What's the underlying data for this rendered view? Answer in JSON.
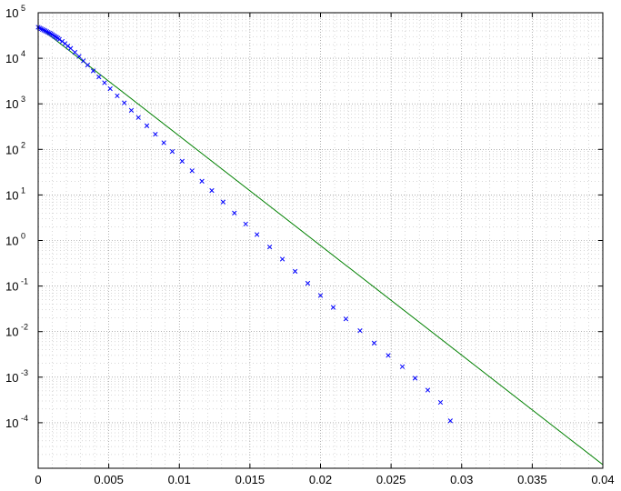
{
  "chart_data": {
    "type": "line",
    "title": "",
    "xlabel": "",
    "ylabel": "",
    "xlim": [
      0,
      0.04
    ],
    "ylim": [
      1e-05,
      100000
    ],
    "yscale": "log",
    "grid": "on (major solid, minor dotted)",
    "legend": "none",
    "x_ticks": [
      "0",
      "0.005",
      "0.01",
      "0.015",
      "0.02",
      "0.025",
      "0.03",
      "0.035",
      "0.04"
    ],
    "y_ticks": [
      {
        "base": "10",
        "exp": "-4"
      },
      {
        "base": "10",
        "exp": "-3"
      },
      {
        "base": "10",
        "exp": "-2"
      },
      {
        "base": "10",
        "exp": "-1"
      },
      {
        "base": "10",
        "exp": "0"
      },
      {
        "base": "10",
        "exp": "1"
      },
      {
        "base": "10",
        "exp": "2"
      },
      {
        "base": "10",
        "exp": "3"
      },
      {
        "base": "10",
        "exp": "4"
      },
      {
        "base": "10",
        "exp": "5"
      }
    ],
    "series": [
      {
        "style": "line",
        "color": "#008000",
        "x": [
          0,
          0.04
        ],
        "y": [
          50000,
          1.2e-05
        ]
      },
      {
        "style": "x-markers",
        "color": "#0000ff",
        "x": [
          0,
          0.0001,
          0.0002,
          0.0003,
          0.0004,
          0.0005,
          0.0006,
          0.0007,
          0.0008,
          0.0009,
          0.001,
          0.0011,
          0.0012,
          0.0013,
          0.0014,
          0.0015,
          0.0017,
          0.0019,
          0.0021,
          0.0023,
          0.0026,
          0.0029,
          0.0032,
          0.0035,
          0.0039,
          0.0043,
          0.0047,
          0.0051,
          0.0056,
          0.0061,
          0.0066,
          0.0071,
          0.0077,
          0.0083,
          0.0089,
          0.0095,
          0.0102,
          0.0109,
          0.0116,
          0.0123,
          0.0131,
          0.0139,
          0.0147,
          0.0155,
          0.0164,
          0.0173,
          0.0182,
          0.0191,
          0.02,
          0.0209,
          0.0218,
          0.0228,
          0.0238,
          0.0248,
          0.0258,
          0.0267,
          0.0276,
          0.0285,
          0.0292
        ],
        "y": [
          48000,
          46000,
          44500,
          43000,
          41500,
          40000,
          38500,
          37000,
          35800,
          34500,
          33000,
          31500,
          30000,
          28800,
          27500,
          26000,
          23500,
          21000,
          18500,
          16500,
          13500,
          11000,
          8800,
          7100,
          5300,
          3900,
          2900,
          2150,
          1500,
          1050,
          720,
          500,
          330,
          215,
          140,
          90,
          55,
          34,
          20,
          12.5,
          7,
          4,
          2.3,
          1.35,
          0.72,
          0.39,
          0.21,
          0.115,
          0.062,
          0.034,
          0.019,
          0.0105,
          0.0056,
          0.003,
          0.0017,
          0.00095,
          0.00052,
          0.00028,
          0.00011
        ]
      }
    ]
  }
}
